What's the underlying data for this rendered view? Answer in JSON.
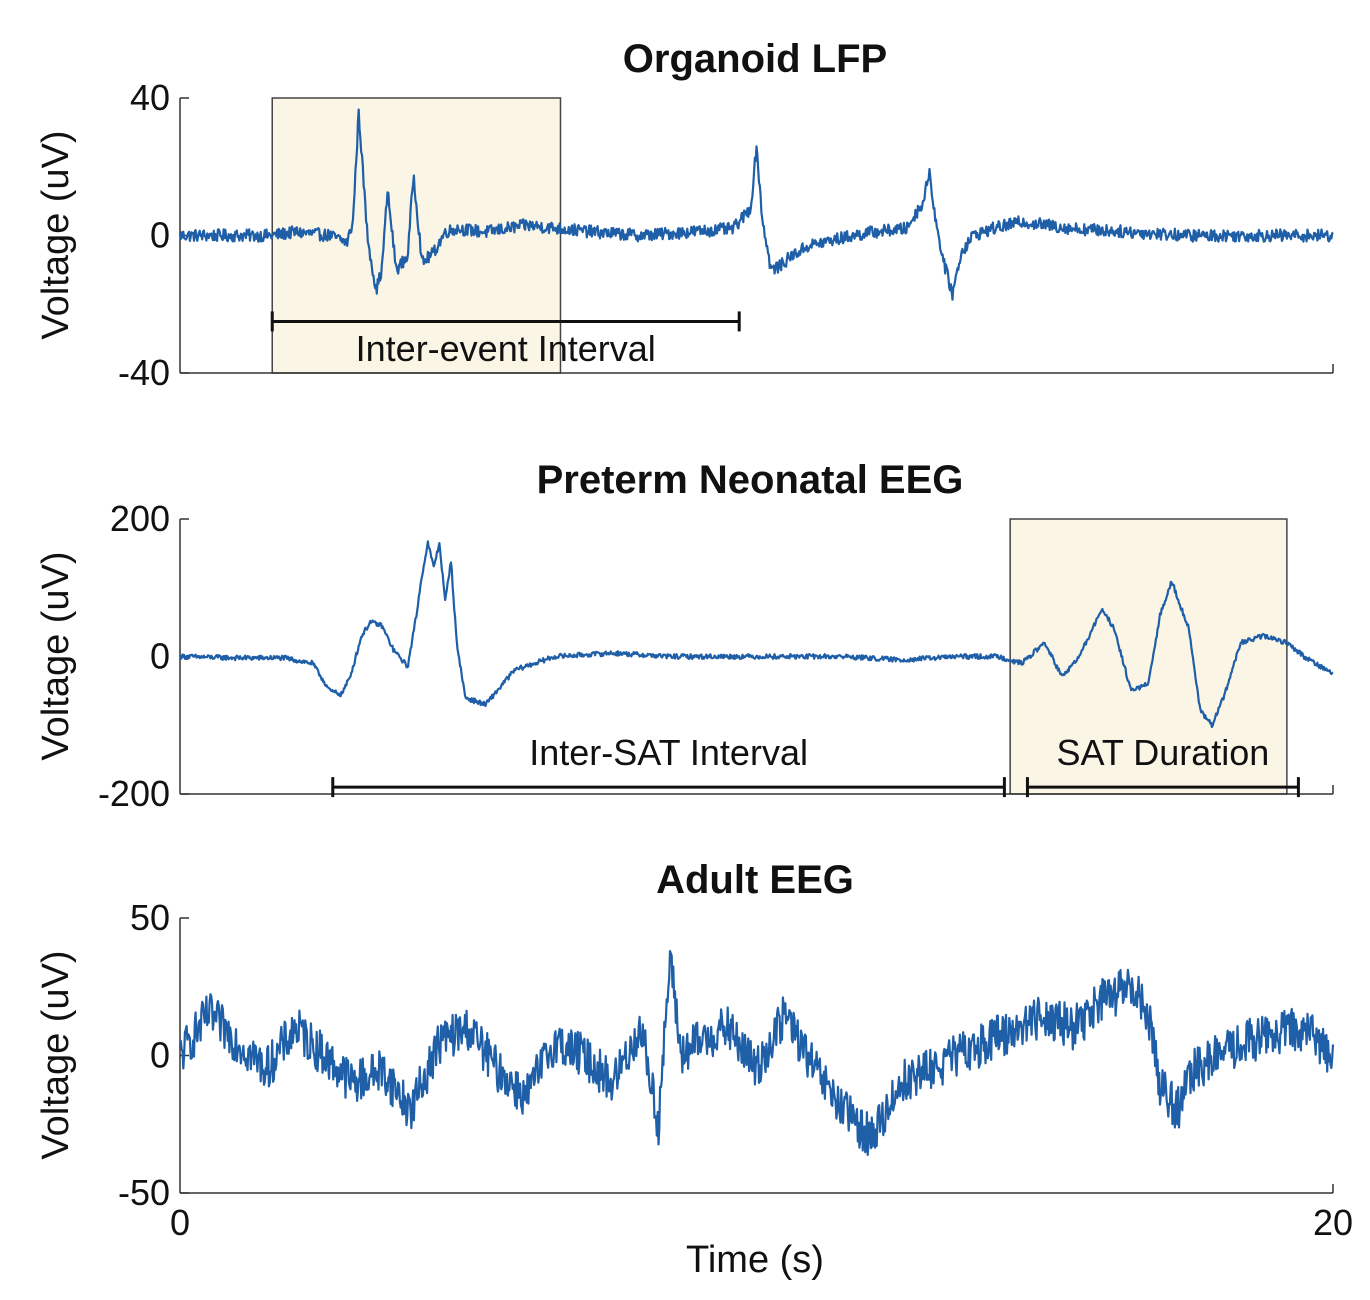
{
  "figure": {
    "line_color": "#1f5fa8",
    "highlight_color": "#fbf5e6",
    "xlabel": "Time (s)",
    "x_ticks": [
      "0",
      "20"
    ]
  },
  "chart_data": [
    {
      "type": "line",
      "title": "Organoid LFP",
      "ylabel": "Voltage (uV)",
      "xlim": [
        0,
        20
      ],
      "ylim": [
        -40,
        40
      ],
      "y_ticks": [
        "40",
        "0",
        "-40"
      ],
      "x_ticks": [],
      "highlight": [
        1.6,
        6.6
      ],
      "annotations": [
        {
          "label": "Inter-event Interval",
          "x_start": 1.6,
          "x_end": 9.7,
          "y": -25,
          "text_y": -33
        }
      ],
      "series": [
        {
          "x": [
            0,
            0.5,
            1.0,
            1.6,
            2.0,
            2.6,
            2.9,
            3.0,
            3.1,
            3.25,
            3.4,
            3.5,
            3.6,
            3.75,
            3.95,
            4.05,
            4.2,
            4.4,
            4.6,
            4.8,
            5.3,
            6.0,
            6.6,
            7.2,
            8.0,
            8.8,
            9.6,
            9.9,
            10.0,
            10.1,
            10.25,
            10.4,
            10.6,
            10.9,
            11.4,
            12.0,
            12.6,
            12.9,
            13.0,
            13.1,
            13.25,
            13.4,
            13.55,
            13.75,
            14.1,
            14.6,
            15.5,
            16.5,
            17.5,
            18.5,
            19.5,
            20.0
          ],
          "y": [
            0,
            0,
            0,
            0,
            1,
            0,
            -2,
            4,
            36,
            0,
            -16,
            -10,
            13,
            -10,
            -6,
            18,
            -8,
            -5,
            1,
            2,
            1,
            3,
            2,
            1,
            0,
            1,
            2,
            8,
            26,
            5,
            -10,
            -9,
            -6,
            -3,
            -1,
            1,
            2,
            10,
            19,
            5,
            -8,
            -17,
            -5,
            0,
            2,
            4,
            2,
            1,
            0,
            0,
            0,
            0
          ]
        }
      ]
    },
    {
      "type": "line",
      "title": "Preterm Neonatal EEG",
      "ylabel": "Voltage (uV)",
      "xlim": [
        0,
        20
      ],
      "ylim": [
        -200,
        200
      ],
      "y_ticks": [
        "200",
        "0",
        "-200"
      ],
      "x_ticks": [],
      "highlight": [
        14.4,
        19.2
      ],
      "annotations": [
        {
          "label": "Inter-SAT Interval",
          "x_start": 2.65,
          "x_end": 14.3,
          "y": -190,
          "text_y": -140
        },
        {
          "label": "SAT Duration",
          "x_start": 14.7,
          "x_end": 19.4,
          "y": -190,
          "text_y": -140
        }
      ],
      "series": [
        {
          "x": [
            0,
            1.0,
            1.8,
            2.3,
            2.6,
            2.8,
            2.95,
            3.15,
            3.3,
            3.5,
            3.7,
            3.95,
            4.1,
            4.2,
            4.3,
            4.4,
            4.5,
            4.6,
            4.7,
            4.8,
            4.95,
            5.3,
            5.8,
            6.5,
            7.5,
            8.5,
            9.5,
            10.5,
            11.5,
            12.5,
            13.5,
            14.2,
            14.6,
            15.0,
            15.3,
            15.6,
            16.0,
            16.2,
            16.5,
            16.8,
            17.0,
            17.2,
            17.5,
            17.7,
            17.9,
            18.1,
            18.4,
            18.8,
            19.2,
            19.5,
            19.7,
            20.0
          ],
          "y": [
            0,
            -2,
            -2,
            -10,
            -50,
            -55,
            -30,
            30,
            50,
            45,
            10,
            -15,
            60,
            120,
            165,
            130,
            165,
            80,
            140,
            20,
            -60,
            -70,
            -20,
            0,
            5,
            0,
            0,
            0,
            0,
            -5,
            0,
            0,
            -10,
            20,
            -30,
            0,
            70,
            40,
            -50,
            -40,
            60,
            110,
            40,
            -80,
            -100,
            -60,
            20,
            30,
            20,
            0,
            -10,
            -25
          ]
        }
      ]
    },
    {
      "type": "line",
      "title": "Adult EEG",
      "ylabel": "Voltage (uV)",
      "xlim": [
        0,
        20
      ],
      "ylim": [
        -50,
        50
      ],
      "y_ticks": [
        "50",
        "0",
        "-50"
      ],
      "x_ticks": [
        "0",
        "20"
      ],
      "highlight": null,
      "annotations": [],
      "series": [
        {
          "x": [
            0,
            0.5,
            1.0,
            1.5,
            2.0,
            2.5,
            3.0,
            3.5,
            4.0,
            4.5,
            5.0,
            5.5,
            6.0,
            6.5,
            7.0,
            7.5,
            8.0,
            8.3,
            8.5,
            8.7,
            9.0,
            9.5,
            10.0,
            10.5,
            11.0,
            11.5,
            12.0,
            12.5,
            13.0,
            13.5,
            14.0,
            14.5,
            15.0,
            15.5,
            16.0,
            16.5,
            16.8,
            17.0,
            17.3,
            17.6,
            18.0,
            18.5,
            19.0,
            19.5,
            20.0
          ],
          "y": [
            0,
            15,
            5,
            -5,
            10,
            0,
            -10,
            -5,
            -20,
            5,
            10,
            -5,
            -15,
            5,
            0,
            -10,
            10,
            -25,
            35,
            0,
            5,
            10,
            -5,
            15,
            -5,
            -20,
            -30,
            -10,
            -5,
            0,
            5,
            10,
            15,
            10,
            20,
            25,
            15,
            -10,
            -20,
            -5,
            0,
            5,
            8,
            10,
            0
          ]
        }
      ]
    }
  ]
}
